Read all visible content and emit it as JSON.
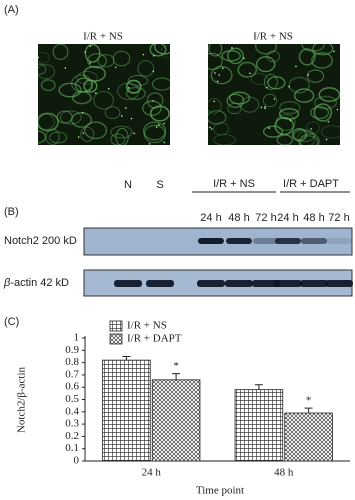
{
  "panel_a": {
    "label": "(A)",
    "images": [
      {
        "label": "I/R + NS"
      },
      {
        "label": "I/R + NS"
      }
    ]
  },
  "panel_b": {
    "label": "(B)",
    "lanes": [
      "N",
      "S"
    ],
    "groups": [
      {
        "label": "I/R + NS",
        "times": [
          "24 h",
          "48 h",
          "72 h"
        ]
      },
      {
        "label": "I/R + DAPT",
        "times": [
          "24 h",
          "48 h",
          "72 h"
        ]
      }
    ],
    "rows": [
      {
        "label": "Notch2 200 kD"
      },
      {
        "label_italic": "β",
        "label": "-actin 42 kD"
      }
    ]
  },
  "chart_data": {
    "type": "bar",
    "label": "(C)",
    "ylabel": "Notch2/β-actin",
    "xlabel": "Time point",
    "categories": [
      "24 h",
      "48 h"
    ],
    "series": [
      {
        "name": "I/R + NS",
        "color": "#222222",
        "pattern": "grid",
        "values": [
          0.82,
          0.58
        ],
        "errors": [
          0.03,
          0.04
        ]
      },
      {
        "name": "I/R + DAPT",
        "color": "#222222",
        "pattern": "dots",
        "values": [
          0.66,
          0.39
        ],
        "errors": [
          0.05,
          0.04
        ],
        "annotations": [
          "*",
          "*"
        ]
      }
    ],
    "ylim": [
      0,
      1
    ],
    "yticks": [
      0,
      0.1,
      0.2,
      0.3,
      0.4,
      0.5,
      0.6,
      0.7,
      0.8,
      0.9,
      1
    ],
    "legend": "top-left"
  }
}
